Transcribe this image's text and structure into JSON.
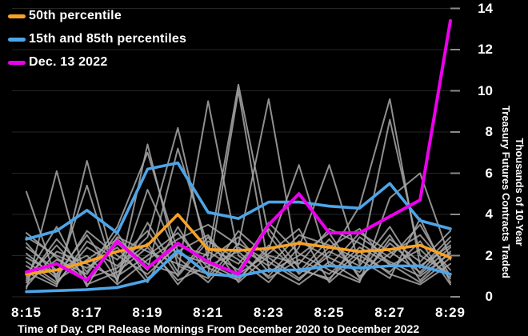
{
  "caption": "Time of Day. CPI Release Mornings From December 2020 to December 2022",
  "legend": {
    "items": [
      {
        "label": "50th percentile",
        "color": "#f7a226"
      },
      {
        "label": "15th and 85th percentiles",
        "color": "#4da5e8"
      },
      {
        "label": "Dec. 13 2022",
        "color": "#ec00ec"
      }
    ]
  },
  "axes": {
    "y_title_lines": [
      "Thousands of 10-Year",
      "Treasury Futures Contracts Traded"
    ],
    "y_tick_labels": [
      "0",
      "2",
      "4",
      "6",
      "8",
      "10",
      "12",
      "14"
    ],
    "x_tick_labels": [
      "8:15",
      "8:17",
      "8:19",
      "8:21",
      "8:23",
      "8:25",
      "8:27",
      "8:29"
    ]
  },
  "chart_data": {
    "type": "line",
    "title": "",
    "xlabel": "Time of Day",
    "ylabel": "Thousands of 10-Year Treasury Futures Contracts Traded",
    "x": [
      "8:15",
      "8:16",
      "8:17",
      "8:18",
      "8:19",
      "8:20",
      "8:21",
      "8:22",
      "8:23",
      "8:24",
      "8:25",
      "8:26",
      "8:27",
      "8:28",
      "8:29"
    ],
    "x_labeled_every": 2,
    "ylim": [
      0,
      14
    ],
    "y_ticks": [
      0,
      2,
      4,
      6,
      8,
      10,
      12,
      14
    ],
    "grid": true,
    "legend_position": "top-left",
    "background": "#000000",
    "colors": {
      "median": "#f7a226",
      "percentile_band": "#4da5e8",
      "highlight": "#ec00ec",
      "individual": "#a8a8a8",
      "gridline": "#262626",
      "tick": "#8a8a8a"
    },
    "series": [
      {
        "name": "individual morning 1",
        "color": "#a8a8a8",
        "lw": 2,
        "values": [
          0.4,
          6.1,
          0.6,
          1.2,
          2.4,
          0.8,
          1.5,
          2.2,
          0.9,
          1.8,
          1.1,
          2.4,
          1.6,
          0.7,
          1.9
        ]
      },
      {
        "name": "individual morning 2",
        "color": "#a8a8a8",
        "lw": 2,
        "values": [
          1.2,
          0.5,
          6.6,
          1.0,
          2.0,
          3.1,
          1.4,
          0.8,
          2.5,
          1.2,
          2.8,
          1.0,
          2.1,
          3.0,
          1.3
        ]
      },
      {
        "name": "individual morning 3",
        "color": "#a8a8a8",
        "lw": 2,
        "values": [
          2.6,
          1.0,
          5.4,
          0.7,
          7.4,
          1.5,
          0.9,
          2.6,
          1.7,
          0.8,
          2.2,
          1.5,
          3.4,
          1.1,
          2.4
        ]
      },
      {
        "name": "individual morning 4",
        "color": "#a8a8a8",
        "lw": 2,
        "values": [
          0.8,
          2.8,
          1.2,
          3.4,
          7.0,
          2.2,
          3.0,
          1.1,
          2.1,
          3.3,
          0.7,
          2.0,
          1.2,
          2.7,
          0.6
        ]
      },
      {
        "name": "individual morning 5",
        "color": "#a8a8a8",
        "lw": 2,
        "values": [
          1.7,
          0.7,
          2.4,
          1.5,
          2.9,
          8.2,
          1.8,
          2.9,
          1.2,
          2.0,
          3.1,
          0.9,
          2.6,
          1.4,
          2.9
        ]
      },
      {
        "name": "individual morning 6",
        "color": "#a8a8a8",
        "lw": 2,
        "values": [
          3.1,
          1.9,
          0.8,
          2.6,
          1.3,
          7.2,
          2.4,
          1.6,
          3.3,
          1.4,
          0.8,
          2.9,
          1.9,
          3.5,
          1.0
        ]
      },
      {
        "name": "individual morning 7",
        "color": "#a8a8a8",
        "lw": 2,
        "values": [
          0.5,
          2.2,
          1.6,
          0.9,
          3.6,
          1.2,
          9.5,
          2.0,
          1.0,
          2.7,
          1.9,
          1.2,
          3.0,
          0.8,
          2.2
        ]
      },
      {
        "name": "individual morning 8",
        "color": "#a8a8a8",
        "lw": 2,
        "values": [
          2.1,
          0.9,
          3.2,
          2.0,
          1.1,
          2.5,
          2.0,
          10.3,
          3.0,
          1.1,
          2.4,
          3.3,
          1.5,
          2.3,
          0.9
        ]
      },
      {
        "name": "individual morning 9",
        "color": "#a8a8a8",
        "lw": 2,
        "values": [
          1.0,
          3.4,
          0.5,
          2.9,
          2.2,
          1.6,
          1.1,
          10.0,
          1.4,
          0.6,
          1.7,
          0.8,
          2.8,
          1.7,
          3.2
        ]
      },
      {
        "name": "individual morning 10",
        "color": "#a8a8a8",
        "lw": 2,
        "values": [
          2.4,
          1.3,
          2.0,
          0.6,
          1.8,
          2.8,
          3.5,
          2.5,
          9.6,
          1.3,
          0.9,
          2.2,
          1.1,
          0.6,
          1.6
        ]
      },
      {
        "name": "individual morning 11",
        "color": "#a8a8a8",
        "lw": 2,
        "values": [
          0.7,
          1.8,
          1.1,
          3.1,
          0.9,
          2.1,
          1.6,
          0.9,
          2.3,
          6.4,
          1.5,
          3.1,
          2.2,
          1.2,
          2.7
        ]
      },
      {
        "name": "individual morning 12",
        "color": "#a8a8a8",
        "lw": 2,
        "values": [
          1.5,
          0.6,
          2.7,
          1.8,
          3.2,
          1.0,
          2.7,
          1.8,
          0.7,
          2.4,
          6.4,
          1.6,
          8.6,
          2.0,
          1.1
        ]
      },
      {
        "name": "individual morning 13",
        "color": "#a8a8a8",
        "lw": 2,
        "values": [
          2.9,
          2.0,
          1.4,
          2.4,
          0.7,
          3.4,
          1.0,
          3.2,
          1.9,
          0.9,
          2.0,
          4.4,
          9.6,
          1.5,
          2.5
        ]
      },
      {
        "name": "individual morning 14",
        "color": "#a8a8a8",
        "lw": 2,
        "values": [
          0.9,
          2.5,
          0.9,
          1.4,
          2.6,
          0.6,
          2.2,
          1.3,
          3.6,
          2.1,
          1.3,
          0.7,
          4.8,
          6.0,
          1.8
        ]
      },
      {
        "name": "individual morning 15",
        "color": "#a8a8a8",
        "lw": 2,
        "values": [
          1.9,
          1.1,
          3.0,
          0.8,
          5.2,
          1.9,
          0.7,
          2.4,
          1.5,
          3.0,
          2.5,
          1.8,
          0.9,
          3.8,
          0.7
        ]
      },
      {
        "name": "individual morning 16",
        "color": "#a8a8a8",
        "lw": 2,
        "values": [
          5.1,
          0.8,
          1.8,
          2.8,
          1.6,
          1.1,
          2.9,
          0.7,
          2.0,
          1.6,
          3.3,
          2.6,
          1.7,
          1.0,
          2.1
        ]
      },
      {
        "name": "15th percentile",
        "color": "#4da5e8",
        "lw": 3.6,
        "values": [
          0.25,
          0.3,
          0.35,
          0.45,
          0.8,
          2.25,
          1.1,
          1.0,
          1.3,
          1.3,
          1.5,
          1.4,
          1.5,
          1.5,
          1.1
        ]
      },
      {
        "name": "85th percentile",
        "color": "#4da5e8",
        "lw": 3.6,
        "values": [
          2.8,
          3.2,
          4.2,
          3.1,
          6.2,
          6.5,
          4.1,
          3.8,
          4.6,
          4.6,
          4.4,
          4.3,
          5.5,
          3.7,
          3.3
        ]
      },
      {
        "name": "50th percentile",
        "color": "#f7a226",
        "lw": 3.6,
        "values": [
          1.1,
          1.3,
          1.7,
          2.2,
          2.5,
          4.0,
          2.3,
          2.25,
          2.35,
          2.6,
          2.4,
          2.2,
          2.3,
          2.5,
          1.9
        ]
      },
      {
        "name": "Dec. 13 2022",
        "color": "#ec00ec",
        "lw": 4,
        "values": [
          1.2,
          1.6,
          0.8,
          2.7,
          1.4,
          2.6,
          1.7,
          1.1,
          3.5,
          5.0,
          3.1,
          3.1,
          3.9,
          4.7,
          13.4
        ]
      }
    ]
  }
}
